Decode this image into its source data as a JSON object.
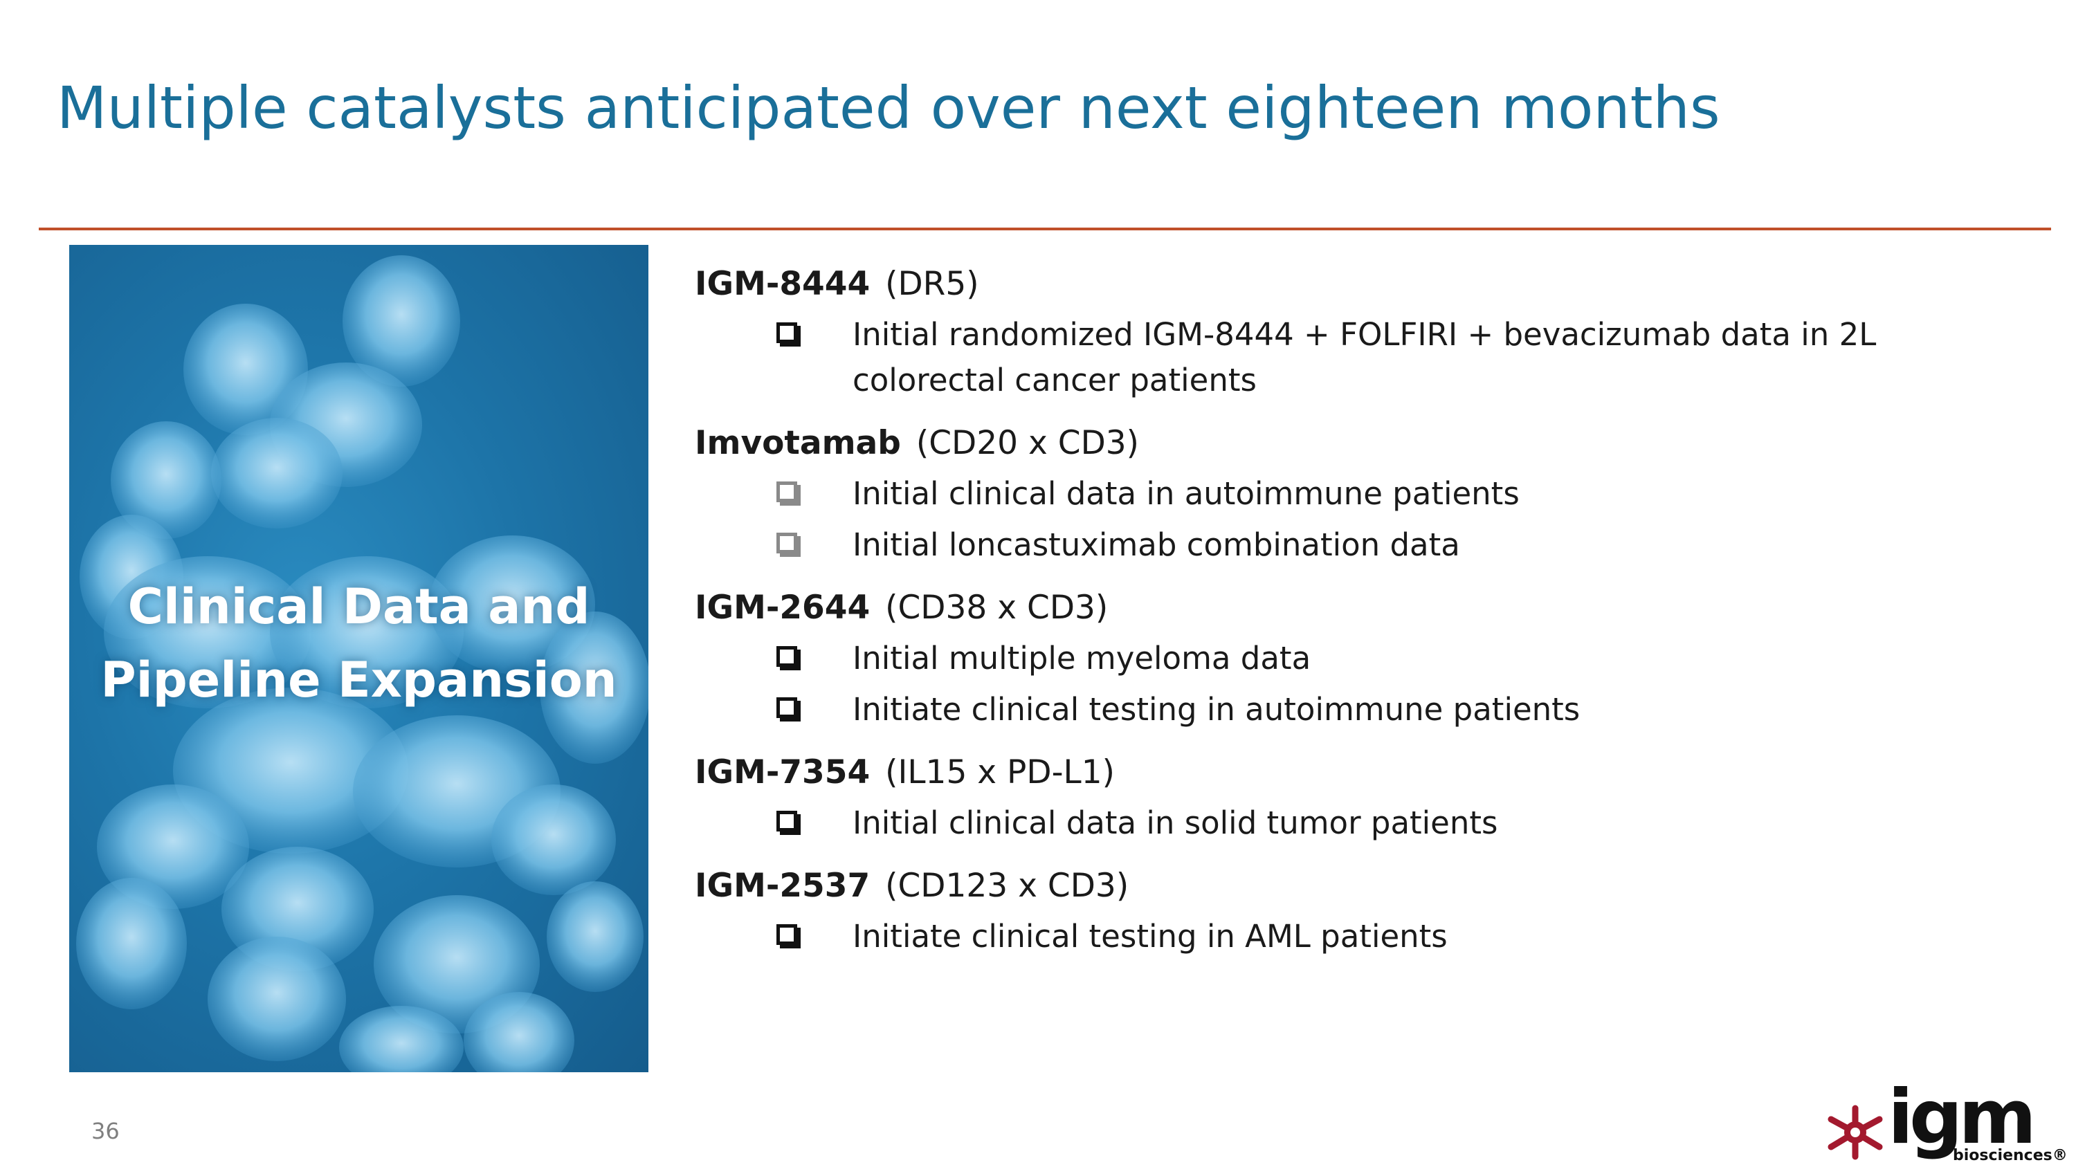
{
  "slide": {
    "title": "Multiple catalysts anticipated over next eighteen months",
    "page_number": "36"
  },
  "hero": {
    "caption_line1": "Clinical Data and",
    "caption_line2": "Pipeline Expansion"
  },
  "programs": [
    {
      "name": "IGM-8444",
      "target": "(DR5)",
      "items": [
        {
          "text": "Initial randomized IGM-8444 + FOLFIRI + bevacizumab data in 2L colorectal cancer patients",
          "checkbox_style": "bold"
        }
      ]
    },
    {
      "name": "Imvotamab",
      "target": "(CD20 x CD3)",
      "items": [
        {
          "text": "Initial clinical data in autoimmune patients",
          "checkbox_style": "light"
        },
        {
          "text": "Initial loncastuximab combination data",
          "checkbox_style": "light"
        }
      ]
    },
    {
      "name": "IGM-2644",
      "target": "(CD38 x CD3)",
      "items": [
        {
          "text": "Initial multiple myeloma data",
          "checkbox_style": "bold"
        },
        {
          "text": "Initiate clinical testing in autoimmune patients",
          "checkbox_style": "bold"
        }
      ]
    },
    {
      "name": "IGM-7354",
      "target": "(IL15 x PD-L1)",
      "items": [
        {
          "text": "Initial clinical data in solid tumor patients",
          "checkbox_style": "bold"
        }
      ]
    },
    {
      "name": "IGM-2537",
      "target": "(CD123 x CD3)",
      "items": [
        {
          "text": "Initiate clinical testing in AML patients",
          "checkbox_style": "bold"
        }
      ]
    }
  ],
  "logo": {
    "wordmark": "igm",
    "subtitle": "biosciences®",
    "mark_icon": "igm-molecule-mark-icon",
    "mark_color": "#a3192e"
  },
  "colors": {
    "title": "#1a6f99",
    "rule": "#c0502a",
    "hero_background": "#1d74a8"
  }
}
